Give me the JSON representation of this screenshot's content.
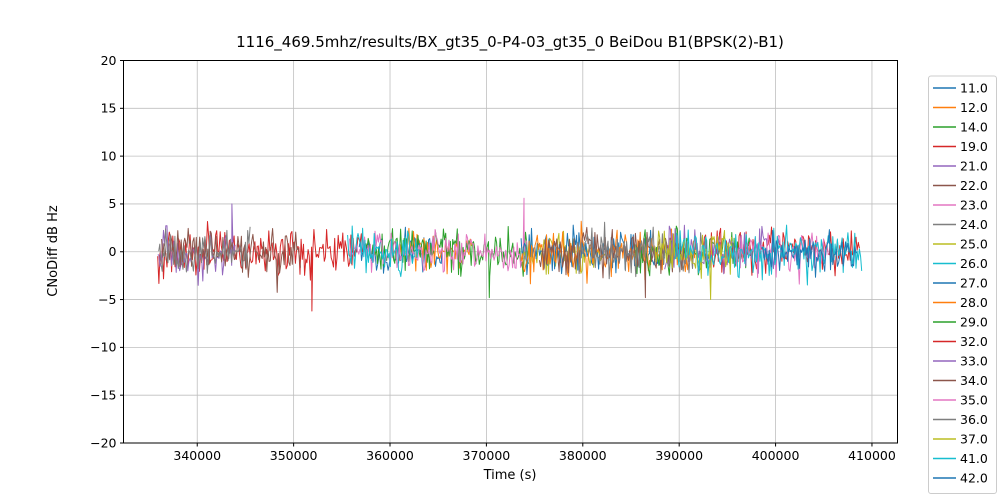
{
  "chart_data": {
    "type": "line",
    "title": "1116_469.5mhz/results/BX_gt35_0-P4-03_gt35_0 BeiDou B1(BPSK(2)-B1)",
    "xlabel": "Time (s)",
    "ylabel": "CNoDiff dB Hz",
    "xlim": [
      332350,
      412650
    ],
    "ylim": [
      -20,
      20
    ],
    "grid": true,
    "legend_position": "right-outside",
    "sample_step": 120,
    "xticks": [
      {
        "v": 340000,
        "label": "340000"
      },
      {
        "v": 350000,
        "label": "350000"
      },
      {
        "v": 360000,
        "label": "360000"
      },
      {
        "v": 370000,
        "label": "370000"
      },
      {
        "v": 380000,
        "label": "380000"
      },
      {
        "v": 390000,
        "label": "390000"
      },
      {
        "v": 400000,
        "label": "400000"
      },
      {
        "v": 410000,
        "label": "410000"
      }
    ],
    "yticks": [
      {
        "v": -20,
        "label": "−20"
      },
      {
        "v": -15,
        "label": "−15"
      },
      {
        "v": -10,
        "label": "−10"
      },
      {
        "v": -5,
        "label": "−5"
      },
      {
        "v": 0,
        "label": "0"
      },
      {
        "v": 5,
        "label": "5"
      },
      {
        "v": 10,
        "label": "10"
      },
      {
        "v": 15,
        "label": "15"
      },
      {
        "v": 20,
        "label": "20"
      }
    ],
    "series_note": "Noisy CNo-difference traces centered on 0 dB, roughly ±3 dB peak noise; values below are generation parameters estimated from the plot.",
    "series": [
      {
        "name": "11.0",
        "color": "#1f77b4",
        "x_start": 356800,
        "x_end": 365500,
        "mean": 0,
        "amp": 2.2,
        "seed": 11,
        "spikes": []
      },
      {
        "name": "12.0",
        "color": "#ff7f0e",
        "x_start": 361000,
        "x_end": 368500,
        "mean": 0,
        "amp": 2.0,
        "seed": 12,
        "spikes": []
      },
      {
        "name": "14.0",
        "color": "#2ca02c",
        "x_start": 357500,
        "x_end": 374500,
        "mean": 0,
        "amp": 2.4,
        "seed": 14,
        "spikes": [
          {
            "x": 370300,
            "v": -4.8
          }
        ]
      },
      {
        "name": "19.0",
        "color": "#d62728",
        "x_start": 335900,
        "x_end": 357200,
        "mean": 0,
        "amp": 2.4,
        "seed": 19,
        "spikes": [
          {
            "x": 351900,
            "v": -6.2
          }
        ]
      },
      {
        "name": "21.0",
        "color": "#9467bd",
        "x_start": 335900,
        "x_end": 344000,
        "mean": 0,
        "amp": 2.2,
        "seed": 21,
        "spikes": [
          {
            "x": 343600,
            "v": 5.0
          }
        ]
      },
      {
        "name": "22.0",
        "color": "#8c564b",
        "x_start": 336300,
        "x_end": 350800,
        "mean": 0,
        "amp": 2.2,
        "seed": 22,
        "spikes": []
      },
      {
        "name": "23.0",
        "color": "#e377c2",
        "x_start": 355800,
        "x_end": 374200,
        "mean": 0,
        "amp": 1.9,
        "seed": 23,
        "spikes": [
          {
            "x": 373900,
            "v": 5.6
          }
        ]
      },
      {
        "name": "24.0",
        "color": "#7f7f7f",
        "x_start": 336000,
        "x_end": 345500,
        "mean": 0,
        "amp": 2.2,
        "seed": 24,
        "spikes": []
      },
      {
        "name": "25.0",
        "color": "#bcbd22",
        "x_start": 373800,
        "x_end": 382500,
        "mean": 0,
        "amp": 2.1,
        "seed": 25,
        "spikes": []
      },
      {
        "name": "26.0",
        "color": "#17becf",
        "x_start": 355600,
        "x_end": 363000,
        "mean": 0,
        "amp": 2.2,
        "seed": 26,
        "spikes": []
      },
      {
        "name": "27.0",
        "color": "#1f77b4",
        "x_start": 373600,
        "x_end": 388500,
        "mean": 0,
        "amp": 2.2,
        "seed": 27,
        "spikes": []
      },
      {
        "name": "28.0",
        "color": "#ff7f0e",
        "x_start": 373600,
        "x_end": 391800,
        "mean": 0,
        "amp": 2.4,
        "seed": 28,
        "spikes": []
      },
      {
        "name": "29.0",
        "color": "#2ca02c",
        "x_start": 385500,
        "x_end": 397500,
        "mean": 0,
        "amp": 2.2,
        "seed": 29,
        "spikes": []
      },
      {
        "name": "32.0",
        "color": "#d62728",
        "x_start": 392500,
        "x_end": 408800,
        "mean": 0,
        "amp": 2.2,
        "seed": 32,
        "spikes": []
      },
      {
        "name": "33.0",
        "color": "#9467bd",
        "x_start": 388500,
        "x_end": 400500,
        "mean": 0,
        "amp": 2.2,
        "seed": 33,
        "spikes": []
      },
      {
        "name": "34.0",
        "color": "#8c564b",
        "x_start": 375500,
        "x_end": 390500,
        "mean": 0,
        "amp": 2.2,
        "seed": 34,
        "spikes": [
          {
            "x": 386500,
            "v": -4.8
          }
        ]
      },
      {
        "name": "35.0",
        "color": "#e377c2",
        "x_start": 395500,
        "x_end": 405500,
        "mean": 0,
        "amp": 2.0,
        "seed": 35,
        "spikes": []
      },
      {
        "name": "36.0",
        "color": "#7f7f7f",
        "x_start": 379500,
        "x_end": 392500,
        "mean": 0,
        "amp": 2.2,
        "seed": 36,
        "spikes": []
      },
      {
        "name": "37.0",
        "color": "#bcbd22",
        "x_start": 387500,
        "x_end": 395500,
        "mean": 0,
        "amp": 2.1,
        "seed": 37,
        "spikes": []
      },
      {
        "name": "41.0",
        "color": "#17becf",
        "x_start": 389500,
        "x_end": 409000,
        "mean": 0,
        "amp": 2.4,
        "seed": 41,
        "spikes": []
      },
      {
        "name": "42.0",
        "color": "#1f77b4",
        "x_start": 398500,
        "x_end": 408500,
        "mean": 0,
        "amp": 2.0,
        "seed": 42,
        "spikes": []
      }
    ],
    "legend": [
      {
        "label": "11.0",
        "color": "#1f77b4"
      },
      {
        "label": "12.0",
        "color": "#ff7f0e"
      },
      {
        "label": "14.0",
        "color": "#2ca02c"
      },
      {
        "label": "19.0",
        "color": "#d62728"
      },
      {
        "label": "21.0",
        "color": "#9467bd"
      },
      {
        "label": "22.0",
        "color": "#8c564b"
      },
      {
        "label": "23.0",
        "color": "#e377c2"
      },
      {
        "label": "24.0",
        "color": "#7f7f7f"
      },
      {
        "label": "25.0",
        "color": "#bcbd22"
      },
      {
        "label": "26.0",
        "color": "#17becf"
      },
      {
        "label": "27.0",
        "color": "#1f77b4"
      },
      {
        "label": "28.0",
        "color": "#ff7f0e"
      },
      {
        "label": "29.0",
        "color": "#2ca02c"
      },
      {
        "label": "32.0",
        "color": "#d62728"
      },
      {
        "label": "33.0",
        "color": "#9467bd"
      },
      {
        "label": "34.0",
        "color": "#8c564b"
      },
      {
        "label": "35.0",
        "color": "#e377c2"
      },
      {
        "label": "36.0",
        "color": "#7f7f7f"
      },
      {
        "label": "37.0",
        "color": "#bcbd22"
      },
      {
        "label": "41.0",
        "color": "#17becf"
      },
      {
        "label": "42.0",
        "color": "#1f77b4"
      }
    ],
    "colors": {
      "grid": "#bfbfbf",
      "spine": "#000000",
      "legend_edge": "#cccccc",
      "background": "#ffffff"
    }
  }
}
